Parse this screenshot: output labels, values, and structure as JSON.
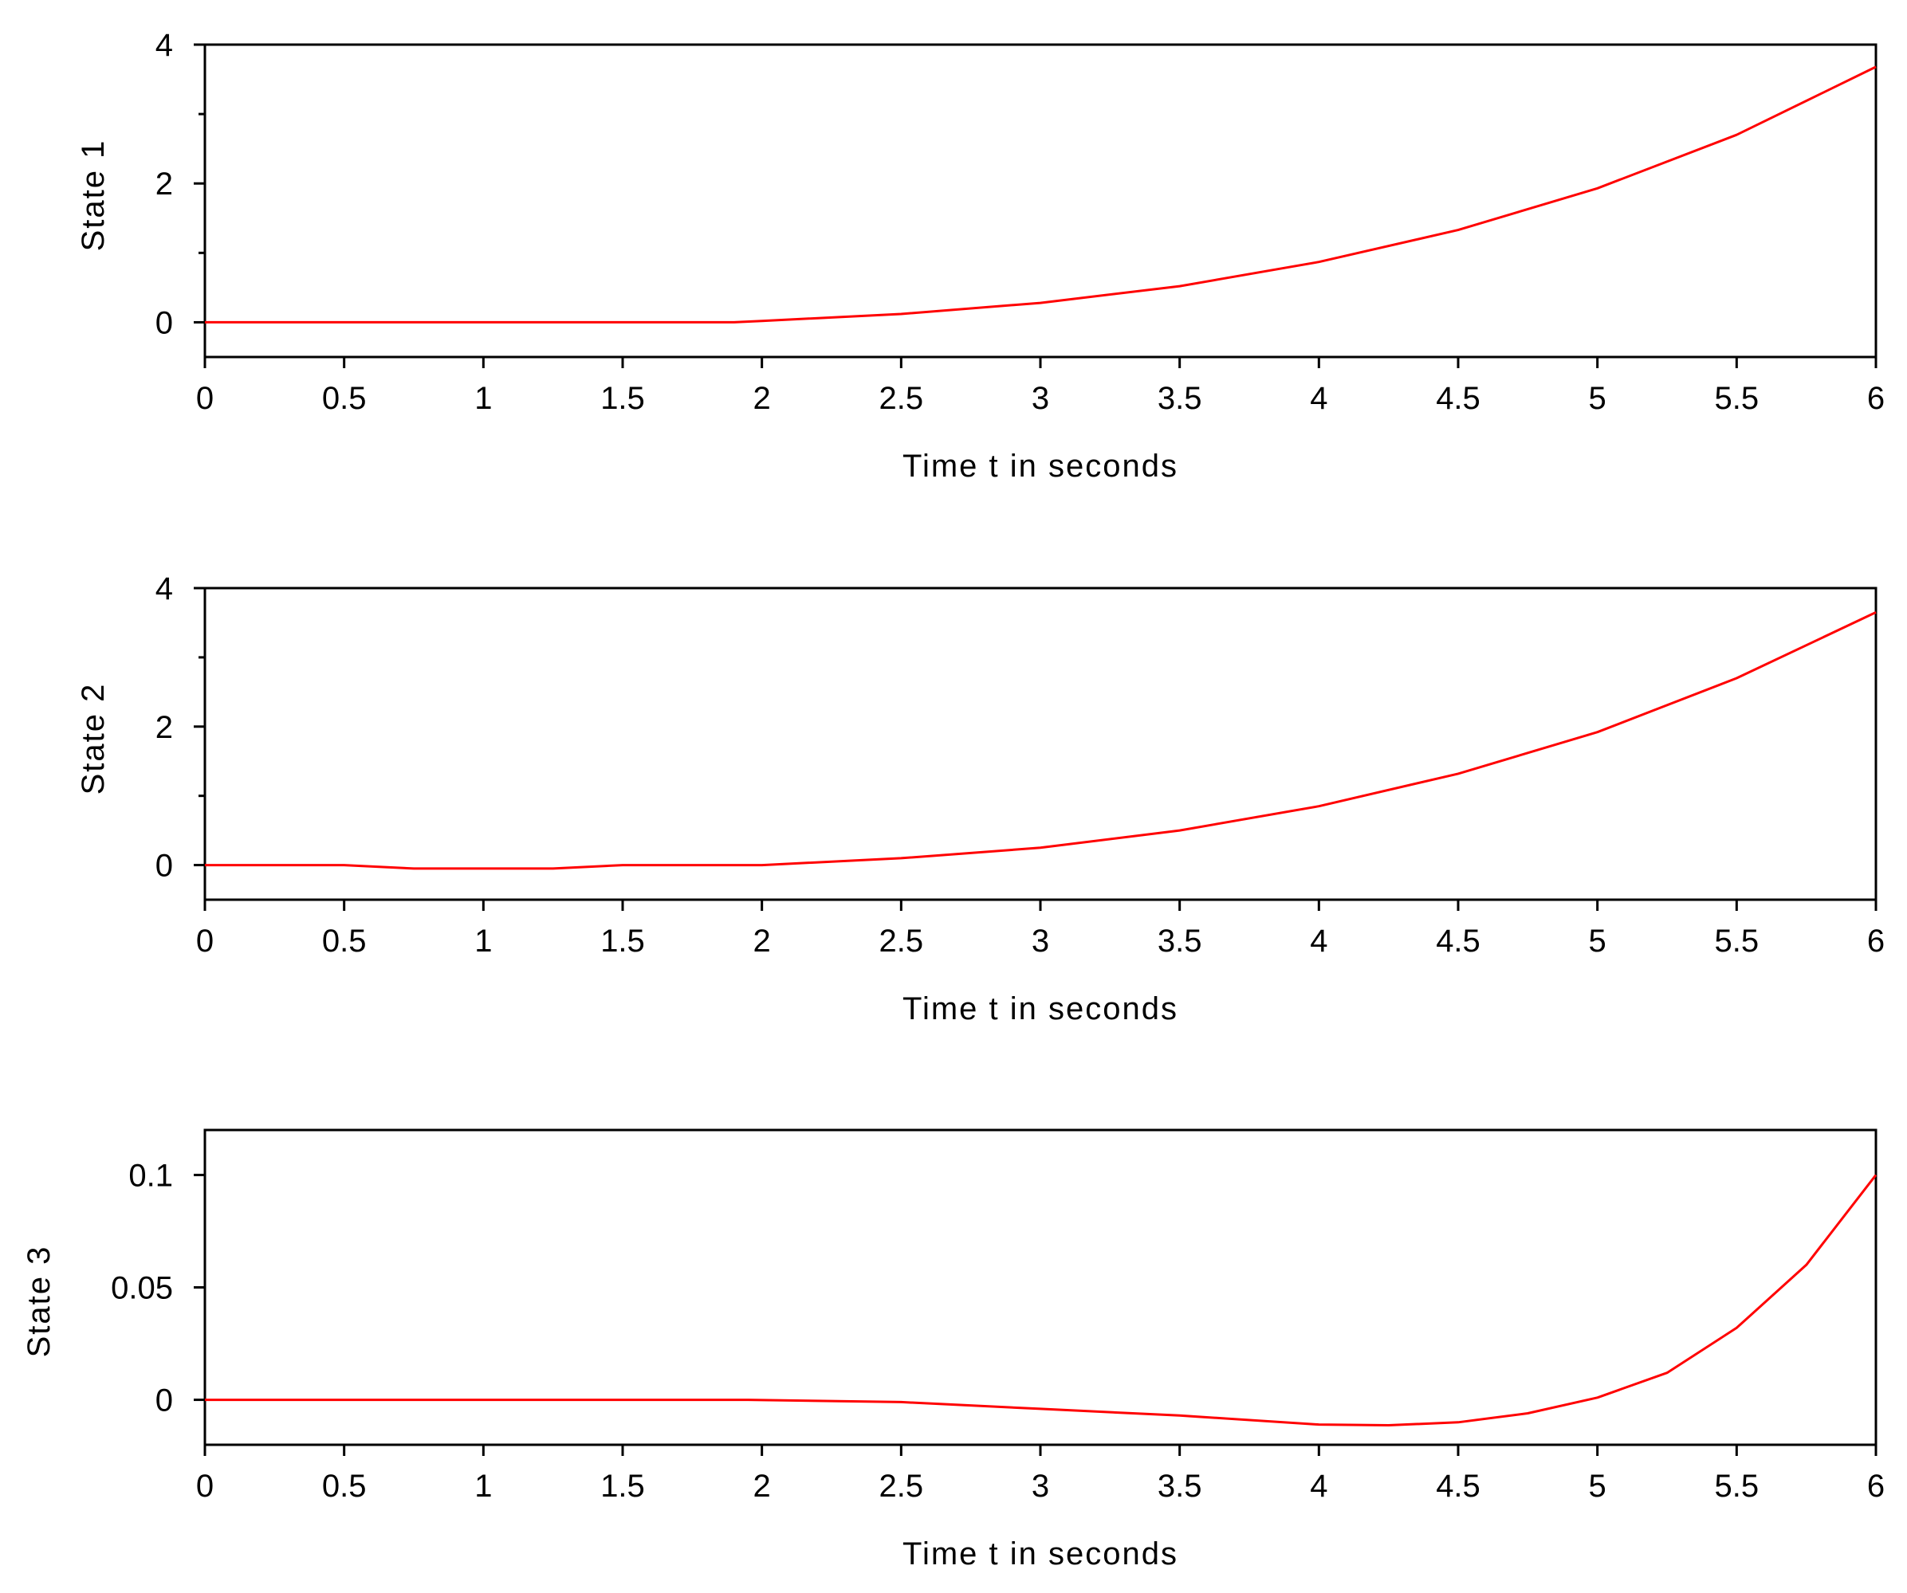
{
  "chart_data": [
    {
      "type": "line",
      "xlabel": "Time t in seconds",
      "ylabel": "State 1",
      "xlim": [
        0,
        6
      ],
      "ylim": [
        -0.5,
        4
      ],
      "x_ticks": [
        "0",
        "0.5",
        "1",
        "1.5",
        "2",
        "2.5",
        "3",
        "3.5",
        "4",
        "4.5",
        "5",
        "5.5",
        "6"
      ],
      "y_ticks": [
        "0",
        "2",
        "4"
      ],
      "y_tick_values": [
        0,
        2,
        4
      ],
      "y_minor_tick_values": [
        1,
        3
      ],
      "grid": false,
      "color": "#ff0000",
      "series": [
        {
          "x": [
            0,
            0.5,
            1,
            1.5,
            1.9,
            2,
            2.5,
            3,
            3.5,
            4,
            4.5,
            5,
            5.5,
            6
          ],
          "y": [
            0,
            0,
            0,
            0,
            0,
            0.02,
            0.12,
            0.28,
            0.52,
            0.87,
            1.33,
            1.93,
            2.7,
            3.68
          ]
        }
      ]
    },
    {
      "type": "line",
      "xlabel": "Time t in seconds",
      "ylabel": "State 2",
      "xlim": [
        0,
        6
      ],
      "ylim": [
        -0.5,
        4
      ],
      "x_ticks": [
        "0",
        "0.5",
        "1",
        "1.5",
        "2",
        "2.5",
        "3",
        "3.5",
        "4",
        "4.5",
        "5",
        "5.5",
        "6"
      ],
      "y_ticks": [
        "0",
        "2",
        "4"
      ],
      "y_tick_values": [
        0,
        2,
        4
      ],
      "y_minor_tick_values": [
        1,
        3
      ],
      "grid": false,
      "color": "#ff0000",
      "series": [
        {
          "x": [
            0,
            0.5,
            0.75,
            1,
            1.25,
            1.5,
            2,
            2.5,
            3,
            3.5,
            4,
            4.5,
            5,
            5.5,
            6
          ],
          "y": [
            0,
            0,
            -0.05,
            -0.05,
            -0.05,
            0,
            0,
            0.1,
            0.25,
            0.5,
            0.85,
            1.32,
            1.92,
            2.7,
            3.65
          ]
        }
      ]
    },
    {
      "type": "line",
      "xlabel": "Time t in seconds",
      "ylabel": "State 3",
      "xlim": [
        0,
        6
      ],
      "ylim": [
        -0.02,
        0.12
      ],
      "x_ticks": [
        "0",
        "0.5",
        "1",
        "1.5",
        "2",
        "2.5",
        "3",
        "3.5",
        "4",
        "4.5",
        "5",
        "5.5",
        "6"
      ],
      "y_ticks": [
        "0",
        "0.05",
        "0.1"
      ],
      "y_tick_values": [
        0,
        0.05,
        0.1
      ],
      "y_minor_tick_values": [],
      "grid": false,
      "color": "#ff0000",
      "series": [
        {
          "x": [
            0,
            1,
            1.95,
            2.5,
            3,
            3.5,
            4,
            4.25,
            4.5,
            4.75,
            5,
            5.25,
            5.5,
            5.75,
            6
          ],
          "y": [
            0,
            0,
            0,
            -0.001,
            -0.004,
            -0.007,
            -0.011,
            -0.0113,
            -0.01,
            -0.006,
            0.001,
            0.012,
            0.032,
            0.06,
            0.1
          ]
        }
      ]
    }
  ]
}
